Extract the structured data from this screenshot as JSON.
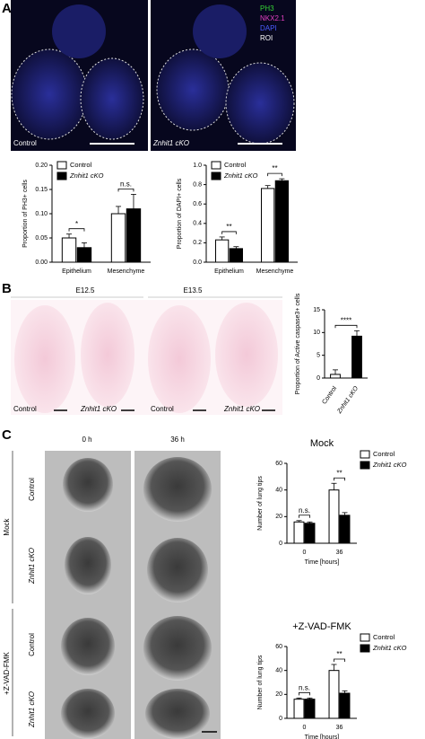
{
  "panels": {
    "a": {
      "label": "A",
      "legend": [
        "PH3",
        "NKX2.1",
        "DAPI",
        "ROI"
      ],
      "images": [
        "Control",
        "Znhit1 cKO"
      ]
    },
    "b": {
      "label": "B",
      "stages": [
        "E12.5",
        "E13.5"
      ],
      "images": [
        "Control",
        "Znhit1 cKO",
        "Control",
        "Znhit1 cKO"
      ]
    },
    "c": {
      "label": "C",
      "times": [
        "0 h",
        "36 h"
      ],
      "groups": [
        "Mock",
        "+Z-VAD-FMK"
      ],
      "rows": [
        "Control",
        "Znhit1 cKO",
        "Control",
        "Znhit1 cKO"
      ]
    }
  },
  "chart_data": [
    {
      "type": "bar",
      "y_label": "Proportion of PH3+ cells",
      "categories": [
        "Epithelium",
        "Mesenchyme"
      ],
      "series": [
        {
          "name": "Control",
          "color": "#ffffff",
          "values": [
            0.05,
            0.1
          ],
          "errors": [
            0.008,
            0.015
          ]
        },
        {
          "name": "Znhit1 cKO",
          "color": "#000000",
          "values": [
            0.03,
            0.11
          ],
          "errors": [
            0.01,
            0.03
          ]
        }
      ],
      "ylim": [
        0,
        0.2
      ],
      "yticks": [
        {
          "value": 0,
          "label": "0.00"
        },
        {
          "value": 0.05,
          "label": "0.05"
        },
        {
          "value": 0.1,
          "label": "0.10"
        },
        {
          "value": 0.15,
          "label": "0.15"
        },
        {
          "value": 0.2,
          "label": "0.20"
        }
      ],
      "annotations": [
        {
          "text": "*",
          "category": "Epithelium"
        },
        {
          "text": "n.s.",
          "category": "Mesenchyme"
        }
      ],
      "legend": "top-left"
    },
    {
      "type": "bar",
      "y_label": "Proportion of DAPI+ cells",
      "categories": [
        "Epithelium",
        "Mesenchyme"
      ],
      "series": [
        {
          "name": "Control",
          "color": "#ffffff",
          "values": [
            0.23,
            0.76
          ],
          "errors": [
            0.03,
            0.03
          ]
        },
        {
          "name": "Znhit1 cKO",
          "color": "#000000",
          "values": [
            0.14,
            0.84
          ],
          "errors": [
            0.02,
            0.02
          ]
        }
      ],
      "ylim": [
        0,
        1
      ],
      "yticks": [
        {
          "value": 0,
          "label": "0.0"
        },
        {
          "value": 0.2,
          "label": "0.2"
        },
        {
          "value": 0.4,
          "label": "0.4"
        },
        {
          "value": 0.6,
          "label": "0.6"
        },
        {
          "value": 0.8,
          "label": "0.8"
        },
        {
          "value": 1,
          "label": "1.0"
        }
      ],
      "annotations": [
        {
          "text": "**",
          "category": "Epithelium"
        },
        {
          "text": "**",
          "category": "Mesenchyme"
        }
      ],
      "legend": "top-left"
    },
    {
      "type": "bar",
      "y_label": "Proportion of Active caspase3+ cells",
      "categories": [
        "Control",
        "Znhit1 cKO"
      ],
      "values": [
        0.8,
        9.2
      ],
      "errors": [
        1.0,
        1.2
      ],
      "colors": [
        "#ffffff",
        "#000000"
      ],
      "ylim": [
        0,
        15
      ],
      "yticks": [
        0,
        5,
        10,
        15
      ],
      "annotations": [
        {
          "text": "****"
        }
      ]
    },
    {
      "type": "bar",
      "title": "Mock",
      "y_label": "Number of lung tips",
      "x_label": "Time [hours]",
      "categories": [
        "0",
        "36"
      ],
      "series": [
        {
          "name": "Control",
          "color": "#ffffff",
          "values": [
            16,
            40
          ],
          "errors": [
            1,
            5
          ]
        },
        {
          "name": "Znhit1 cKO",
          "color": "#000000",
          "values": [
            15,
            21
          ],
          "errors": [
            1,
            2
          ]
        }
      ],
      "ylim": [
        0,
        60
      ],
      "yticks": [
        0,
        20,
        40,
        60
      ],
      "annotations": [
        {
          "text": "n.s.",
          "category": "0"
        },
        {
          "text": "**",
          "category": "36"
        }
      ],
      "legend": "top-right"
    },
    {
      "type": "bar",
      "title": "+Z-VAD-FMK",
      "y_label": "Number of lung tips",
      "x_label": "Time [hours]",
      "categories": [
        "0",
        "36"
      ],
      "series": [
        {
          "name": "Control",
          "color": "#ffffff",
          "values": [
            16,
            40
          ],
          "errors": [
            1,
            5
          ]
        },
        {
          "name": "Znhit1 cKO",
          "color": "#000000",
          "values": [
            16,
            21
          ],
          "errors": [
            1,
            2
          ]
        }
      ],
      "ylim": [
        0,
        60
      ],
      "yticks": [
        0,
        20,
        40,
        60
      ],
      "annotations": [
        {
          "text": "n.s.",
          "category": "0"
        },
        {
          "text": "**",
          "category": "36"
        }
      ],
      "legend": "top-right"
    }
  ]
}
